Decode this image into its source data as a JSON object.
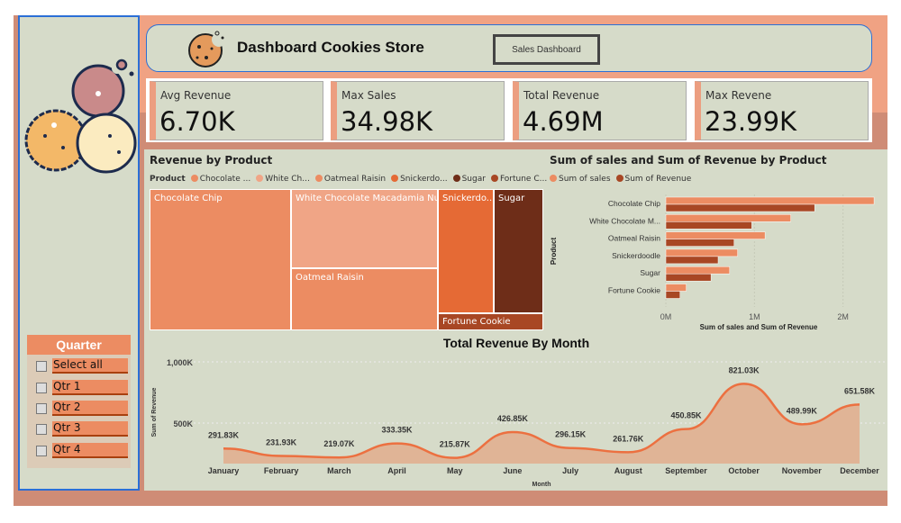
{
  "header": {
    "title": "Dashboard Cookies Store",
    "button": "Sales Dashboard"
  },
  "kpis": [
    {
      "label": "Avg Revenue",
      "value": "6.70K"
    },
    {
      "label": "Max Sales",
      "value": "34.98K"
    },
    {
      "label": "Total Revenue",
      "value": "4.69M"
    },
    {
      "label": "Max Revene",
      "value": "23.99K"
    }
  ],
  "slicer": {
    "title": "Quarter",
    "items": [
      "Select all",
      "Qtr 1",
      "Qtr 2",
      "Qtr 3",
      "Qtr 4"
    ]
  },
  "treemap": {
    "title": "Revenue by Product",
    "legend_title": "Product",
    "legend": [
      {
        "label": "Chocolate ...",
        "color": "#ec8c62"
      },
      {
        "label": "White Ch...",
        "color": "#f0a586"
      },
      {
        "label": "Oatmeal Raisin",
        "color": "#ec8c62"
      },
      {
        "label": "Snickerdo...",
        "color": "#e56a35"
      },
      {
        "label": "Sugar",
        "color": "#6e2d18"
      },
      {
        "label": "Fortune C...",
        "color": "#a84724"
      }
    ],
    "tiles": [
      {
        "label": "Chocolate Chip",
        "color": "#ec8c62"
      },
      {
        "label": "White Chocolate Macadamia Nut",
        "color": "#f0a586"
      },
      {
        "label": "Oatmeal Raisin",
        "color": "#ec8c62"
      },
      {
        "label": "Snickerdo...",
        "color": "#e56a35"
      },
      {
        "label": "Sugar",
        "color": "#6e2d18"
      },
      {
        "label": "Fortune Cookie",
        "color": "#a84724"
      }
    ]
  },
  "chart_data": [
    {
      "type": "bar",
      "orientation": "horizontal",
      "title": "Sum of sales and Sum of Revenue by Product",
      "xlabel": "Sum of sales and Sum of Revenue",
      "ylabel": "Product",
      "legend": "top-left",
      "categories": [
        "Chocolate Chip",
        "White Chocolate M...",
        "Oatmeal Raisin",
        "Snickerdoodle",
        "Sugar",
        "Fortune Cookie"
      ],
      "series": [
        {
          "name": "Sum of sales",
          "color": "#ec8c62",
          "values": [
            2.35,
            1.41,
            1.12,
            0.81,
            0.72,
            0.23
          ]
        },
        {
          "name": "Sum of Revenue",
          "color": "#a84724",
          "values": [
            1.68,
            0.97,
            0.77,
            0.59,
            0.51,
            0.16
          ]
        }
      ],
      "unit": "M",
      "xlim": [
        0,
        2.4
      ],
      "xticks": [
        "0M",
        "1M",
        "2M"
      ],
      "grid": true
    },
    {
      "type": "area",
      "title": "Total Revenue By Month",
      "xlabel": "Month",
      "ylabel": "Sum of Revenue",
      "categories": [
        "January",
        "February",
        "March",
        "April",
        "May",
        "June",
        "July",
        "August",
        "September",
        "October",
        "November",
        "December"
      ],
      "values": [
        291.83,
        231.93,
        219.07,
        333.35,
        215.87,
        426.85,
        296.15,
        261.76,
        450.85,
        821.03,
        489.99,
        651.58
      ],
      "labels": [
        "291.83K",
        "231.93K",
        "219.07K",
        "333.35K",
        "215.87K",
        "426.85K",
        "296.15K",
        "261.76K",
        "450.85K",
        "821.03K",
        "489.99K",
        "651.58K"
      ],
      "yticks": [
        "500K",
        "1,000K"
      ],
      "ylim": [
        0,
        1000
      ],
      "line_color": "#ec7040",
      "fill_color": "#e0b496",
      "grid": true
    }
  ]
}
